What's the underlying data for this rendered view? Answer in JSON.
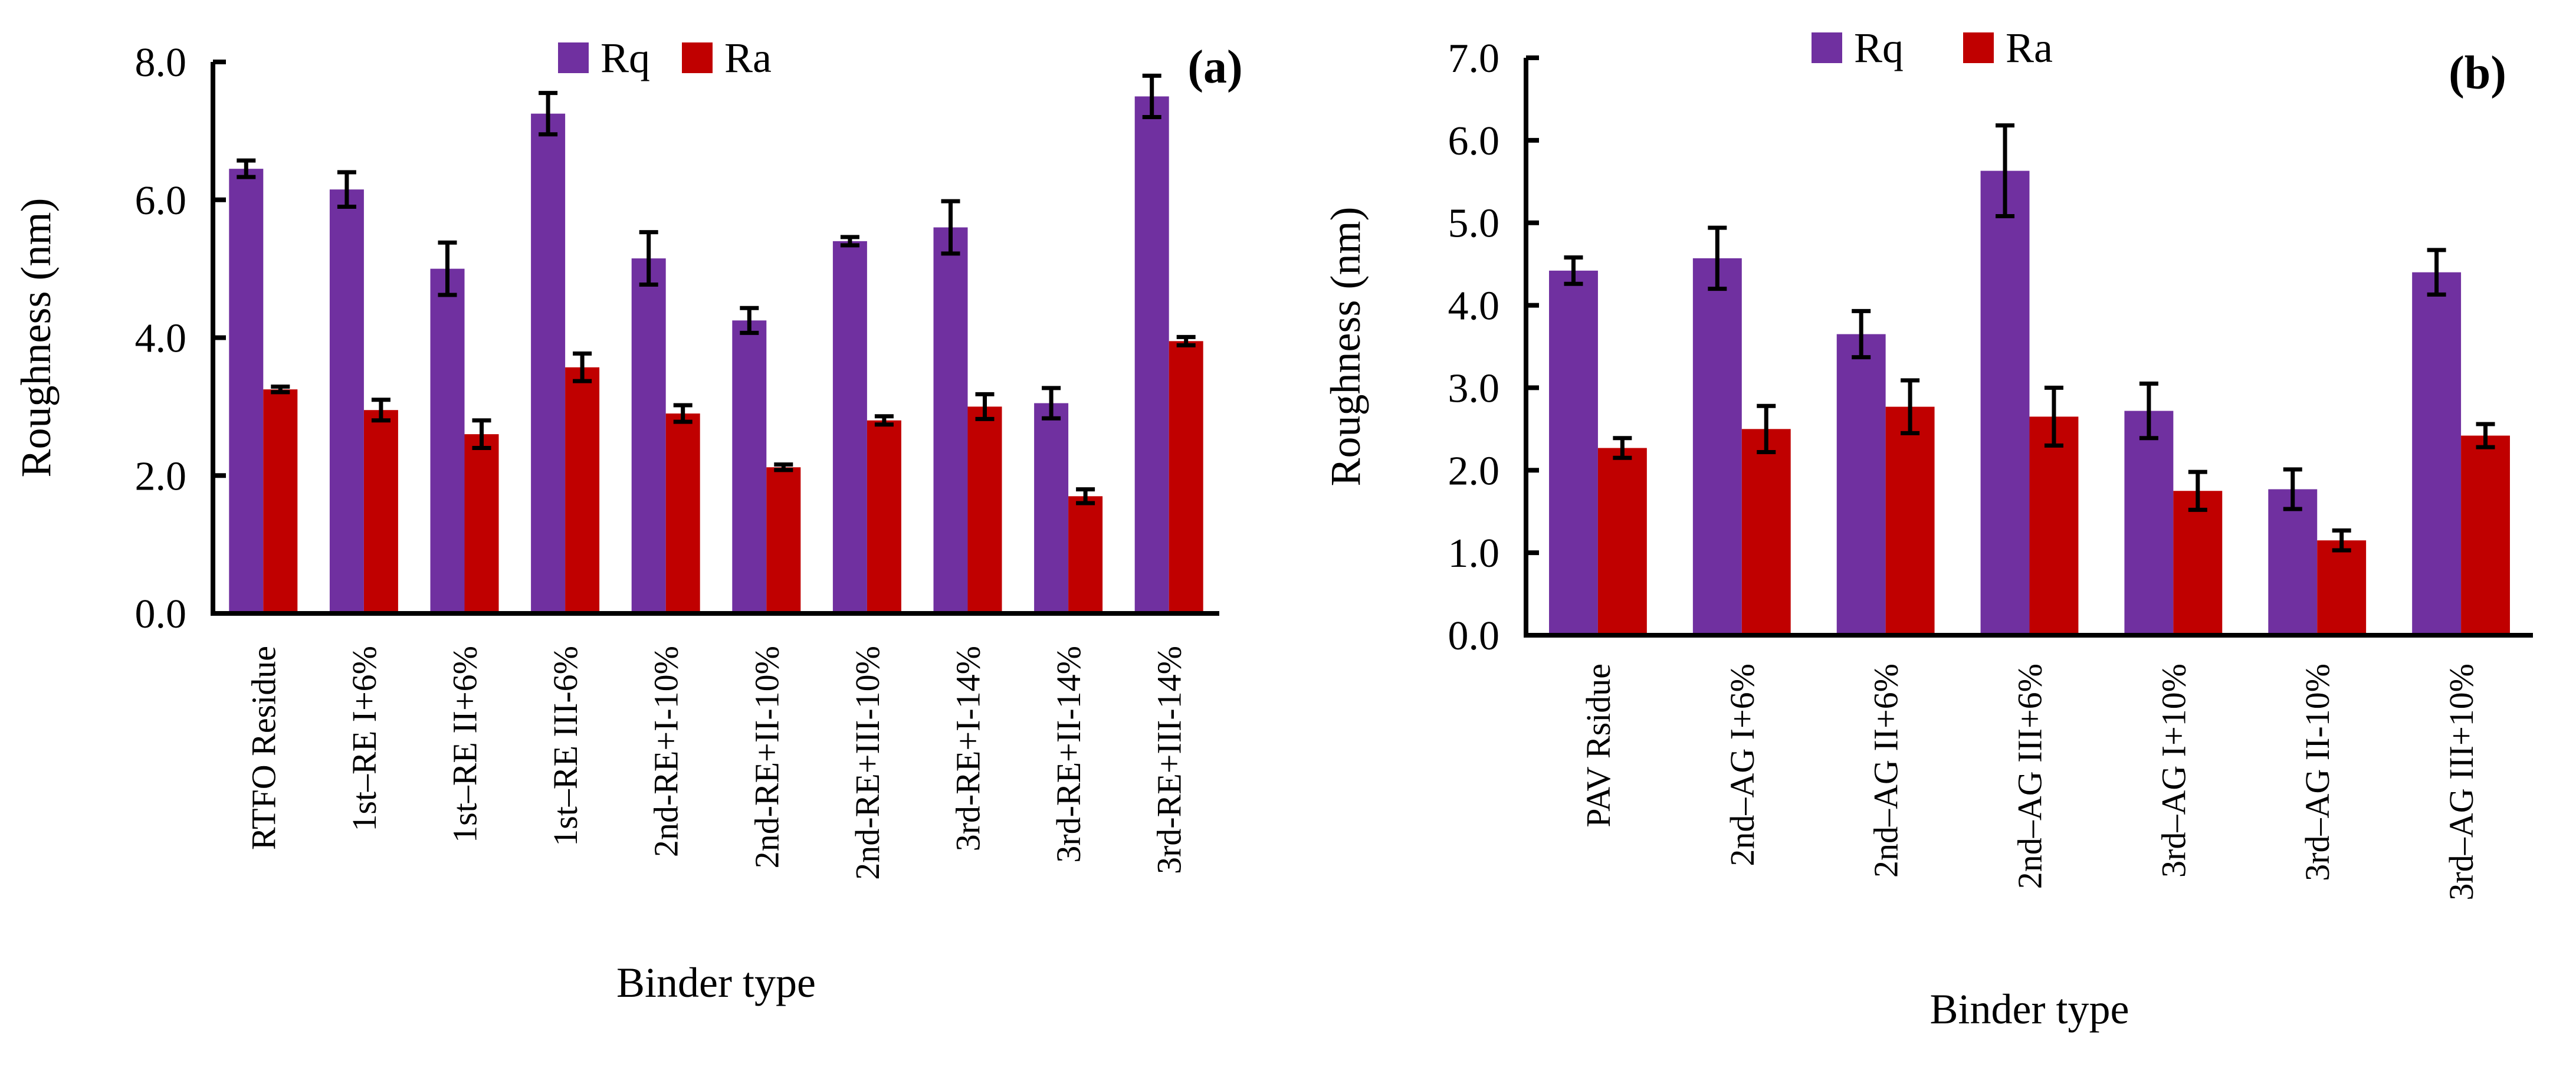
{
  "colors": {
    "Rq": "#7030A0",
    "Ra": "#C00000",
    "error": "#000000"
  },
  "chart_data": [
    {
      "type": "bar",
      "panel_label": "(a)",
      "xlabel": "Binder type",
      "ylabel": "Roughness (nm)",
      "ylim": [
        0,
        8
      ],
      "yticks": [
        "0.0",
        "2.0",
        "4.0",
        "6.0",
        "8.0"
      ],
      "grid": false,
      "legend": {
        "placement": "top-center",
        "entries": [
          "Rq",
          "Ra"
        ]
      },
      "categories": [
        "RTFO Residue",
        "1st–RE I+6%",
        "1st–RE II+6%",
        "1st–RE III-6%",
        "2nd-RE+I-10%",
        "2nd-RE+II-10%",
        "2nd-RE+III-10%",
        "3rd-RE+I-14%",
        "3rd-RE+II-14%",
        "3rd-RE+III-14%"
      ],
      "series": [
        {
          "name": "Rq",
          "values": [
            6.45,
            6.15,
            5.0,
            7.25,
            5.15,
            4.25,
            5.4,
            5.6,
            3.05,
            7.5
          ],
          "errors": [
            0.12,
            0.25,
            0.38,
            0.3,
            0.38,
            0.18,
            0.06,
            0.38,
            0.22,
            0.3
          ]
        },
        {
          "name": "Ra",
          "values": [
            3.25,
            2.95,
            2.6,
            3.57,
            2.9,
            2.12,
            2.8,
            3.0,
            1.7,
            3.95
          ],
          "errors": [
            0.04,
            0.15,
            0.2,
            0.2,
            0.12,
            0.04,
            0.06,
            0.18,
            0.1,
            0.06
          ]
        }
      ]
    },
    {
      "type": "bar",
      "panel_label": "(b)",
      "xlabel": "Binder type",
      "ylabel": "Roughness (nm)",
      "ylim": [
        0,
        7
      ],
      "yticks": [
        "0.0",
        "1.0",
        "2.0",
        "3.0",
        "4.0",
        "5.0",
        "6.0",
        "7.0"
      ],
      "grid": false,
      "legend": {
        "placement": "top-center",
        "entries": [
          "Rq",
          "Ra"
        ]
      },
      "categories": [
        "PAV Rsidue",
        "2nd–AG I+6%",
        "2nd–AG II+6%",
        "2nd–AG III+6%",
        "3rd–AG I+10%",
        "3rd–AG II-10%",
        "3rd–AG III+10%"
      ],
      "series": [
        {
          "name": "Rq",
          "values": [
            4.42,
            4.57,
            3.65,
            5.63,
            2.72,
            1.77,
            4.4
          ],
          "errors": [
            0.16,
            0.37,
            0.28,
            0.55,
            0.33,
            0.24,
            0.27
          ]
        },
        {
          "name": "Ra",
          "values": [
            2.27,
            2.5,
            2.77,
            2.65,
            1.75,
            1.15,
            2.42
          ],
          "errors": [
            0.12,
            0.28,
            0.32,
            0.35,
            0.23,
            0.12,
            0.14
          ]
        }
      ]
    }
  ]
}
